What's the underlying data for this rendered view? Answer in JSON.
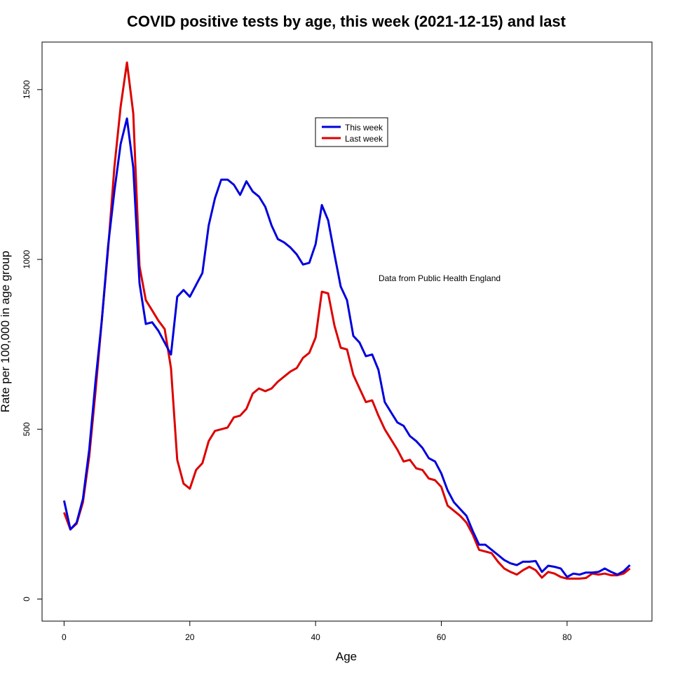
{
  "chart_data": {
    "type": "line",
    "title": "COVID positive tests by age, this week (2021-12-15) and last",
    "xlabel": "Age",
    "ylabel": "Rate per 100,000 in age group",
    "xlim": [
      -3.5,
      93.5
    ],
    "ylim": [
      -65,
      1640
    ],
    "xticks": [
      0,
      20,
      40,
      60,
      80
    ],
    "yticks": [
      0,
      500,
      1000,
      1500
    ],
    "xtick_labels": [
      "0",
      "20",
      "40",
      "60",
      "80"
    ],
    "ytick_labels": [
      "0",
      "500",
      "1000",
      "1500"
    ],
    "annotation": "Data from Public Health England",
    "legend_position": "top-center",
    "x": [
      0,
      1,
      2,
      3,
      4,
      5,
      6,
      7,
      8,
      9,
      10,
      11,
      12,
      13,
      14,
      15,
      16,
      17,
      18,
      19,
      20,
      21,
      22,
      23,
      24,
      25,
      26,
      27,
      28,
      29,
      30,
      31,
      32,
      33,
      34,
      35,
      36,
      37,
      38,
      39,
      40,
      41,
      42,
      43,
      44,
      45,
      46,
      47,
      48,
      49,
      50,
      51,
      52,
      53,
      54,
      55,
      56,
      57,
      58,
      59,
      60,
      61,
      62,
      63,
      64,
      65,
      66,
      67,
      68,
      69,
      70,
      71,
      72,
      73,
      74,
      75,
      76,
      77,
      78,
      79,
      80,
      81,
      82,
      83,
      84,
      85,
      86,
      87,
      88,
      89,
      90
    ],
    "series": [
      {
        "name": "This week",
        "color": "#0000dd",
        "values": [
          290,
          205,
          225,
          295,
          440,
          640,
          820,
          1040,
          1200,
          1340,
          1415,
          1270,
          930,
          810,
          815,
          790,
          755,
          720,
          890,
          910,
          890,
          925,
          960,
          1100,
          1180,
          1235,
          1235,
          1220,
          1190,
          1230,
          1200,
          1185,
          1155,
          1100,
          1060,
          1050,
          1035,
          1015,
          985,
          990,
          1045,
          1160,
          1115,
          1015,
          920,
          880,
          775,
          755,
          715,
          720,
          675,
          580,
          550,
          520,
          510,
          480,
          465,
          445,
          415,
          405,
          370,
          320,
          285,
          265,
          245,
          200,
          160,
          160,
          145,
          130,
          115,
          105,
          100,
          110,
          110,
          112,
          80,
          98,
          95,
          90,
          65,
          75,
          72,
          78,
          78,
          80,
          90,
          80,
          72,
          82,
          100
        ]
      },
      {
        "name": "Last week",
        "color": "#dd0000",
        "values": [
          255,
          205,
          222,
          285,
          420,
          610,
          820,
          1030,
          1270,
          1450,
          1580,
          1430,
          980,
          880,
          850,
          820,
          795,
          680,
          410,
          340,
          325,
          380,
          400,
          465,
          495,
          500,
          505,
          535,
          540,
          560,
          605,
          620,
          612,
          620,
          640,
          655,
          670,
          680,
          710,
          725,
          770,
          905,
          900,
          805,
          740,
          735,
          660,
          620,
          580,
          585,
          540,
          500,
          470,
          440,
          405,
          410,
          385,
          380,
          355,
          350,
          330,
          275,
          260,
          245,
          225,
          190,
          145,
          140,
          135,
          110,
          90,
          80,
          72,
          85,
          95,
          85,
          63,
          80,
          75,
          65,
          60,
          60,
          60,
          62,
          75,
          72,
          75,
          70,
          70,
          75,
          90
        ]
      }
    ]
  }
}
